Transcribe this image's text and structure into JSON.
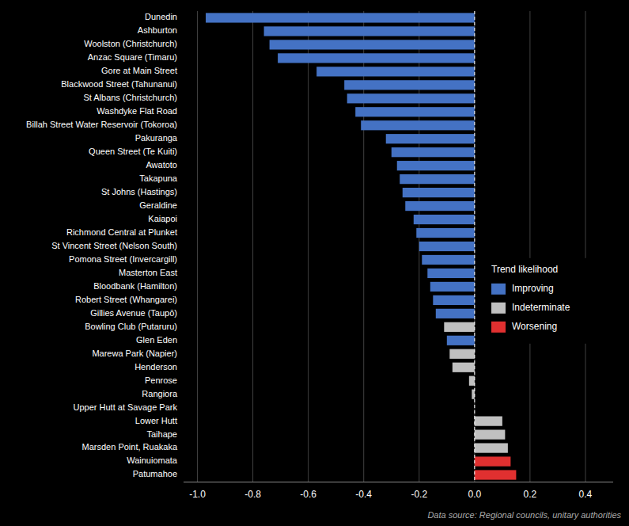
{
  "chart_data": {
    "type": "bar",
    "orientation": "horizontal",
    "categories": [
      "Dunedin",
      "Ashburton",
      "Woolston (Christchurch)",
      "Anzac Square (Timaru)",
      "Gore at Main Street",
      "Blackwood Street (Tahunanui)",
      "St Albans (Christchurch)",
      "Washdyke Flat Road",
      "Billah Street Water Reservoir (Tokoroa)",
      "Pakuranga",
      "Queen Street (Te Kuiti)",
      "Awatoto",
      "Takapuna",
      "St Johns (Hastings)",
      "Geraldine",
      "Kaiapoi",
      "Richmond Central at Plunket",
      "St Vincent Street (Nelson South)",
      "Pomona Street (Invercargill)",
      "Masterton East",
      "Bloodbank (Hamilton)",
      "Robert Street (Whangarei)",
      "Gillies Avenue (Taupō)",
      "Bowling Club (Putaruru)",
      "Glen Eden",
      "Marewa Park (Napier)",
      "Henderson",
      "Penrose",
      "Rangiora",
      "Upper Hutt at Savage Park",
      "Lower Hutt",
      "Taihape",
      "Marsden Point, Ruakaka",
      "Wainuiomata",
      "Patumahoe"
    ],
    "values": [
      -0.97,
      -0.76,
      -0.74,
      -0.71,
      -0.57,
      -0.47,
      -0.46,
      -0.43,
      -0.41,
      -0.32,
      -0.3,
      -0.28,
      -0.27,
      -0.26,
      -0.25,
      -0.22,
      -0.21,
      -0.2,
      -0.19,
      -0.17,
      -0.16,
      -0.15,
      -0.14,
      -0.11,
      -0.1,
      -0.09,
      -0.08,
      -0.02,
      -0.01,
      0.0,
      0.1,
      0.11,
      0.12,
      0.13,
      0.15
    ],
    "colors": [
      "#4472c4",
      "#4472c4",
      "#4472c4",
      "#4472c4",
      "#4472c4",
      "#4472c4",
      "#4472c4",
      "#4472c4",
      "#4472c4",
      "#4472c4",
      "#4472c4",
      "#4472c4",
      "#4472c4",
      "#4472c4",
      "#4472c4",
      "#4472c4",
      "#4472c4",
      "#4472c4",
      "#4472c4",
      "#4472c4",
      "#4472c4",
      "#4472c4",
      "#4472c4",
      "#c0c0c0",
      "#4472c4",
      "#c0c0c0",
      "#c0c0c0",
      "#c0c0c0",
      "#c0c0c0",
      "#c0c0c0",
      "#c0c0c0",
      "#c0c0c0",
      "#c0c0c0",
      "#e03030",
      "#e03030"
    ],
    "xlim": [
      -1.05,
      0.5
    ],
    "xticks": [
      {
        "value": -1.0,
        "label": "-1.0"
      },
      -0.8,
      -0.6,
      -0.4,
      -0.2,
      {
        "value": 0.0,
        "label": "0.0"
      },
      0.2,
      0.4
    ],
    "grid": true,
    "legend": "right",
    "legend_title": "Trend likelihood",
    "legend_entries": [
      {
        "name": "Improving",
        "color": "#4472c4"
      },
      {
        "name": "Indeterminate",
        "color": "#c0c0c0"
      },
      {
        "name": "Worsening",
        "color": "#e03030"
      }
    ],
    "annotations": [
      "Data source: Regional councils, unitary authorities"
    ]
  }
}
